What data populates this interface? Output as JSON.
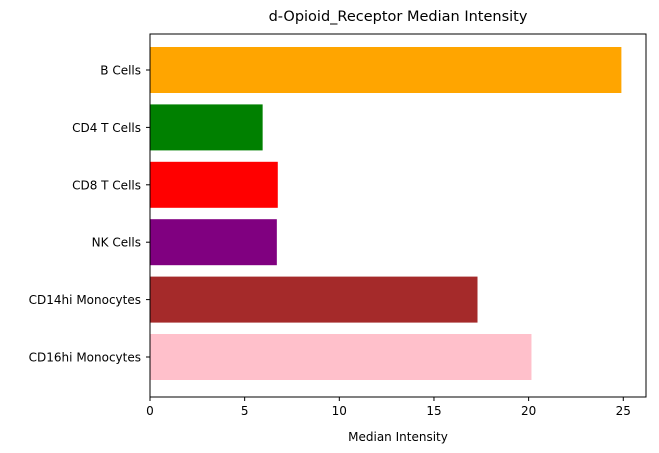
{
  "chart_data": {
    "type": "bar",
    "orientation": "horizontal",
    "title": "d-Opioid_Receptor Median Intensity",
    "xlabel": "Median Intensity",
    "ylabel": "",
    "xlim": [
      0,
      26.2
    ],
    "xticks": [
      0,
      5,
      10,
      15,
      20,
      25
    ],
    "grid": false,
    "categories": [
      "B Cells",
      "CD4 T Cells",
      "CD8 T Cells",
      "NK Cells",
      "CD14hi Monocytes",
      "CD16hi Monocytes"
    ],
    "values": [
      24.9,
      5.95,
      6.75,
      6.7,
      17.3,
      20.15
    ],
    "colors": [
      "#ffa500",
      "#008000",
      "#ff0000",
      "#800080",
      "#a52a2a",
      "#ffc0cb"
    ]
  }
}
